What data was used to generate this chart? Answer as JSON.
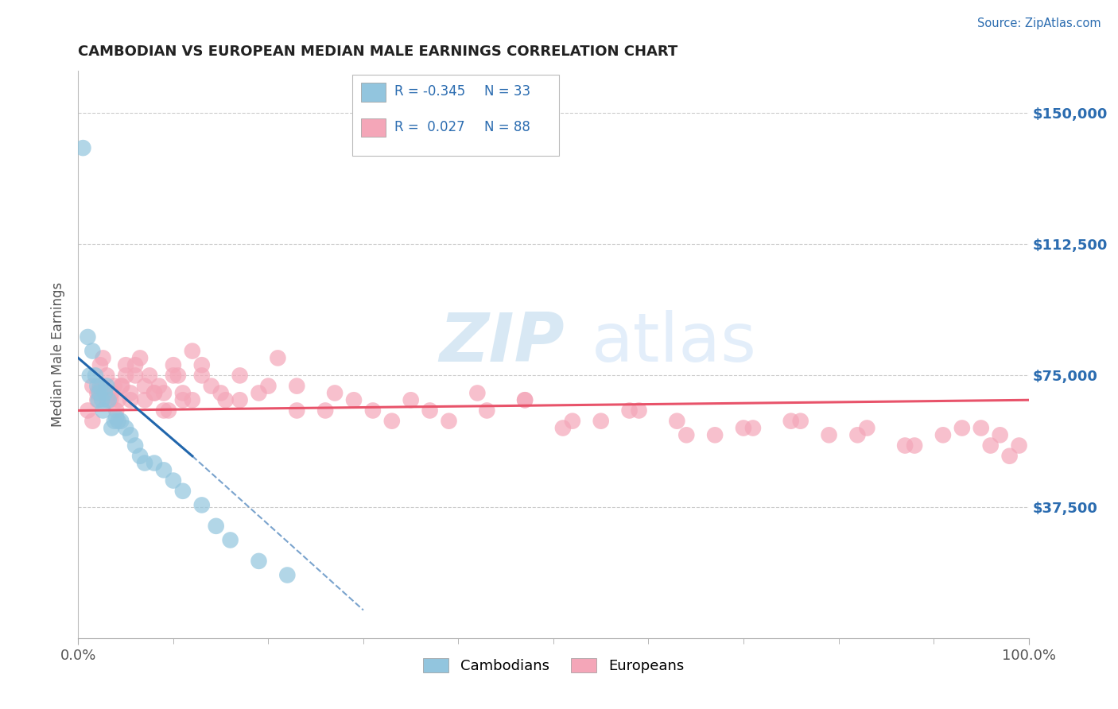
{
  "title": "CAMBODIAN VS EUROPEAN MEDIAN MALE EARNINGS CORRELATION CHART",
  "source": "Source: ZipAtlas.com",
  "ylabel": "Median Male Earnings",
  "ytick_labels": [
    "$37,500",
    "$75,000",
    "$112,500",
    "$150,000"
  ],
  "ytick_vals": [
    37500,
    75000,
    112500,
    150000
  ],
  "xtick_labels": [
    "0.0%",
    "100.0%"
  ],
  "legend_labels": [
    "Cambodians",
    "Europeans"
  ],
  "cambodian_color": "#92c5de",
  "european_color": "#f4a6b8",
  "cambodian_line_color": "#2166ac",
  "european_line_color": "#e8536a",
  "watermark_zip": "ZIP",
  "watermark_atlas": "atlas",
  "background_color": "#ffffff",
  "grid_color": "#cccccc",
  "ylim": [
    0,
    162000
  ],
  "xlim": [
    0,
    100
  ],
  "cambodian_x": [
    0.5,
    1.0,
    1.2,
    1.5,
    1.8,
    2.0,
    2.1,
    2.2,
    2.3,
    2.5,
    2.6,
    2.8,
    3.0,
    3.2,
    3.5,
    3.8,
    4.0,
    4.2,
    4.5,
    5.0,
    5.5,
    6.0,
    6.5,
    7.0,
    8.0,
    9.0,
    10.0,
    11.0,
    13.0,
    14.5,
    16.0,
    19.0,
    22.0
  ],
  "cambodian_y": [
    140000,
    86000,
    75000,
    82000,
    75000,
    72000,
    68000,
    70000,
    72000,
    68000,
    65000,
    70000,
    72000,
    68000,
    60000,
    62000,
    63000,
    62000,
    62000,
    60000,
    58000,
    55000,
    52000,
    50000,
    50000,
    48000,
    45000,
    42000,
    38000,
    32000,
    28000,
    22000,
    18000
  ],
  "european_x": [
    1.5,
    2.0,
    2.3,
    2.6,
    3.0,
    3.4,
    3.8,
    4.2,
    4.6,
    5.0,
    5.5,
    6.0,
    6.5,
    7.0,
    7.5,
    8.0,
    8.5,
    9.0,
    9.5,
    10.0,
    10.5,
    11.0,
    12.0,
    13.0,
    14.0,
    15.5,
    17.0,
    19.0,
    21.0,
    23.0,
    26.0,
    29.0,
    33.0,
    37.0,
    42.0,
    47.0,
    52.0,
    58.0,
    64.0,
    70.0,
    76.0,
    82.0,
    88.0,
    93.0
  ],
  "european_y": [
    72000,
    68000,
    78000,
    80000,
    75000,
    68000,
    72000,
    68000,
    72000,
    78000,
    70000,
    75000,
    80000,
    68000,
    75000,
    70000,
    72000,
    70000,
    65000,
    78000,
    75000,
    68000,
    82000,
    78000,
    72000,
    68000,
    75000,
    70000,
    80000,
    72000,
    65000,
    68000,
    62000,
    65000,
    70000,
    68000,
    62000,
    65000,
    58000,
    60000,
    62000,
    58000,
    55000,
    60000
  ],
  "european_x2": [
    1.0,
    1.5,
    2.0,
    2.5,
    3.0,
    3.5,
    4.0,
    4.5,
    5.0,
    5.5,
    6.0,
    7.0,
    8.0,
    9.0,
    10.0,
    11.0,
    12.0,
    13.0,
    15.0,
    17.0,
    20.0,
    23.0,
    27.0,
    31.0,
    35.0,
    39.0,
    43.0,
    47.0,
    51.0,
    55.0,
    59.0,
    63.0,
    67.0,
    71.0,
    75.0,
    79.0,
    83.0,
    87.0,
    91.0,
    95.0,
    96.0,
    97.0,
    98.0,
    99.0
  ],
  "european_y2": [
    65000,
    62000,
    70000,
    72000,
    68000,
    70000,
    65000,
    72000,
    75000,
    68000,
    78000,
    72000,
    70000,
    65000,
    75000,
    70000,
    68000,
    75000,
    70000,
    68000,
    72000,
    65000,
    70000,
    65000,
    68000,
    62000,
    65000,
    68000,
    60000,
    62000,
    65000,
    62000,
    58000,
    60000,
    62000,
    58000,
    60000,
    55000,
    58000,
    60000,
    55000,
    58000,
    52000,
    55000
  ]
}
